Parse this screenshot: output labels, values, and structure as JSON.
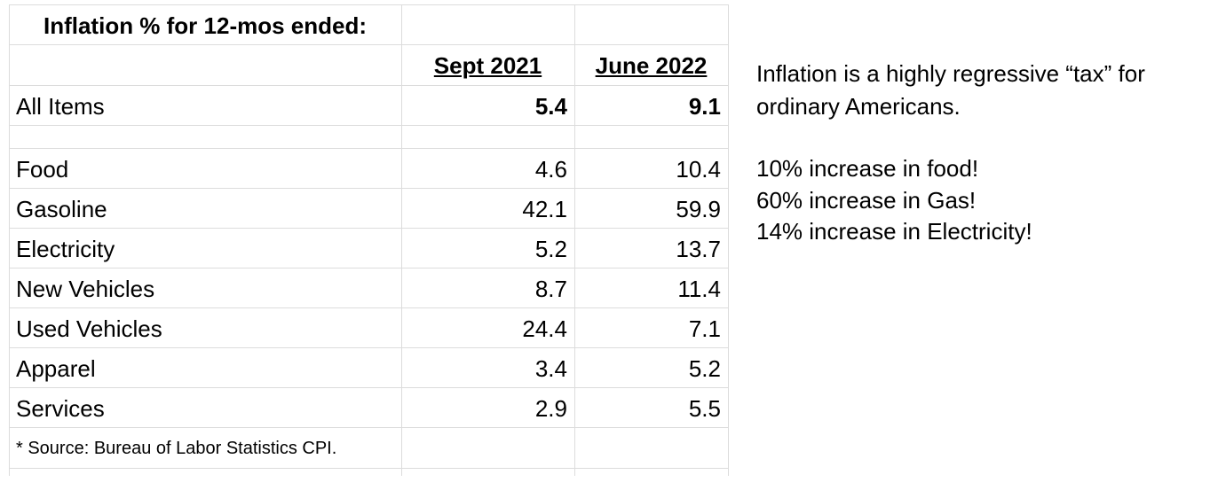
{
  "table": {
    "title": "Inflation % for 12-mos ended:",
    "headers": [
      "Sept 2021",
      "June 2022"
    ],
    "total": {
      "label": "All Items",
      "values": [
        5.4,
        9.1
      ]
    },
    "rows": [
      {
        "label": "Food",
        "values": [
          4.6,
          10.4
        ]
      },
      {
        "label": "Gasoline",
        "values": [
          42.1,
          59.9
        ]
      },
      {
        "label": "Electricity",
        "values": [
          5.2,
          13.7
        ]
      },
      {
        "label": "New Vehicles",
        "values": [
          8.7,
          11.4
        ]
      },
      {
        "label": "Used Vehicles",
        "values": [
          24.4,
          7.1
        ]
      },
      {
        "label": "Apparel",
        "values": [
          3.4,
          5.2
        ]
      },
      {
        "label": "Services",
        "values": [
          2.9,
          5.5
        ]
      }
    ],
    "footnote": "* Source: Bureau of Labor Statistics CPI."
  },
  "notes": {
    "lines": [
      "Inflation is a highly regressive “tax” for",
      "ordinary Americans."
    ],
    "bullets": [
      "10% increase in food!",
      "60% increase in Gas!",
      "14% increase in Electricity!"
    ]
  }
}
